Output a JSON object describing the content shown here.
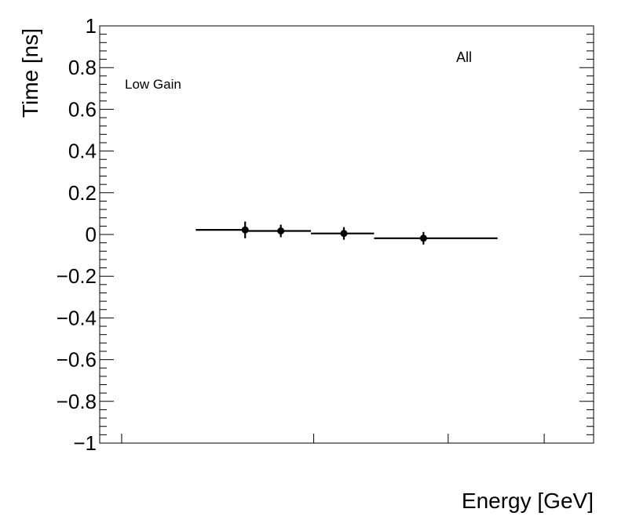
{
  "chart_data": {
    "type": "scatter",
    "title": "",
    "xlabel": "Energy [GeV]",
    "ylabel": "Time [ns]",
    "xlim": [
      0,
      9
    ],
    "ylim": [
      -1,
      1
    ],
    "yticks": [
      1,
      0.8,
      0.6,
      0.4,
      0.2,
      0,
      -0.2,
      -0.4,
      -0.6,
      -0.8,
      -1
    ],
    "ytick_labels": [
      "1",
      "0.8",
      "0.6",
      "0.4",
      "0.2",
      "0",
      "−0.2",
      "−0.4",
      "−0.6",
      "−0.8",
      "−1"
    ],
    "annotations": {
      "category": "All",
      "gain": "Low Gain"
    },
    "series": [
      {
        "name": "All",
        "points": [
          {
            "x": 2.65,
            "y": 0.022,
            "xlow": 1.75,
            "xhigh": 2.7,
            "yerr": 0.04
          },
          {
            "x": 3.3,
            "y": 0.017,
            "xlow": 2.7,
            "xhigh": 3.85,
            "yerr": 0.03
          },
          {
            "x": 4.45,
            "y": 0.005,
            "xlow": 3.85,
            "xhigh": 5.0,
            "yerr": 0.03
          },
          {
            "x": 5.9,
            "y": -0.018,
            "xlow": 5.0,
            "xhigh": 7.25,
            "yerr": 0.03
          }
        ]
      }
    ]
  }
}
